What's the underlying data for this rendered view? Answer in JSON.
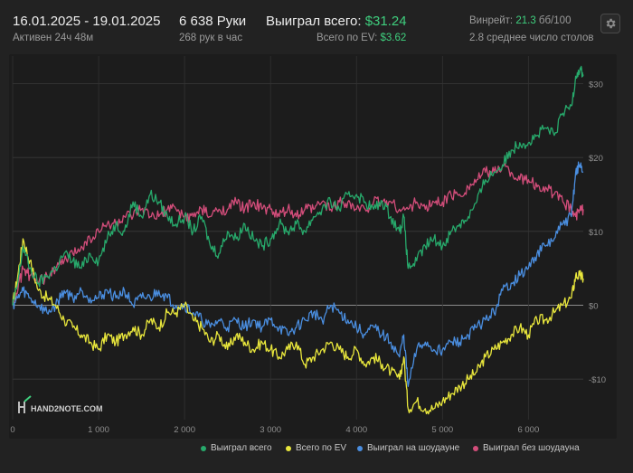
{
  "header": {
    "date_range": "16.01.2025 - 19.01.2025",
    "active": "Активен 24ч 48м",
    "hands": "6 638 Руки",
    "hands_per_hour": "268 рук в час",
    "won_label": "Выиграл всего:",
    "won_value": "$31.24",
    "ev_label": "Всего по EV:",
    "ev_value": "$3.62",
    "winrate_label": "Винрейт:",
    "winrate_value": "21.3",
    "winrate_unit": "бб/100",
    "avg_tables": "2.8 среднее число столов"
  },
  "watermark": "HAND2NOTE.COM",
  "colors": {
    "total": "#27a96b",
    "ev": "#e8e63c",
    "showdown": "#4a8ee0",
    "non_showdown": "#d24d7a"
  },
  "chart_data": {
    "type": "line",
    "x_range": [
      0,
      6638
    ],
    "ylim": [
      -15,
      33
    ],
    "x_ticks": [
      0,
      1000,
      2000,
      3000,
      4000,
      5000,
      6000
    ],
    "x_tick_labels": [
      "0",
      "1 000",
      "2 000",
      "3 000",
      "4 000",
      "5 000",
      "6 000"
    ],
    "y_ticks": [
      -10,
      0,
      10,
      20,
      30
    ],
    "y_tick_labels": [
      "-$10",
      "$0",
      "$10",
      "$20",
      "$30"
    ],
    "grid": true,
    "legend_position": "bottom-right",
    "series": [
      {
        "name": "Выиграл всего",
        "key": "total",
        "points": [
          [
            0,
            0
          ],
          [
            60,
            3
          ],
          [
            120,
            8
          ],
          [
            200,
            5
          ],
          [
            300,
            3
          ],
          [
            400,
            4
          ],
          [
            500,
            5
          ],
          [
            600,
            7
          ],
          [
            700,
            6
          ],
          [
            800,
            5
          ],
          [
            900,
            7
          ],
          [
            1000,
            6
          ],
          [
            1100,
            9
          ],
          [
            1200,
            11
          ],
          [
            1300,
            10
          ],
          [
            1400,
            14
          ],
          [
            1500,
            12
          ],
          [
            1600,
            15
          ],
          [
            1700,
            14
          ],
          [
            1800,
            12
          ],
          [
            1900,
            11
          ],
          [
            2000,
            12
          ],
          [
            2100,
            10
          ],
          [
            2200,
            12
          ],
          [
            2300,
            8
          ],
          [
            2400,
            7
          ],
          [
            2500,
            10
          ],
          [
            2600,
            9
          ],
          [
            2700,
            11
          ],
          [
            2800,
            9
          ],
          [
            2900,
            8
          ],
          [
            3000,
            9
          ],
          [
            3100,
            11
          ],
          [
            3200,
            10
          ],
          [
            3300,
            11
          ],
          [
            3400,
            10
          ],
          [
            3500,
            12
          ],
          [
            3600,
            13
          ],
          [
            3700,
            14
          ],
          [
            3800,
            13
          ],
          [
            3900,
            15
          ],
          [
            4000,
            15
          ],
          [
            4100,
            14
          ],
          [
            4200,
            13
          ],
          [
            4300,
            14
          ],
          [
            4400,
            12
          ],
          [
            4500,
            10
          ],
          [
            4550,
            12
          ],
          [
            4600,
            5
          ],
          [
            4700,
            6
          ],
          [
            4800,
            8
          ],
          [
            4900,
            9
          ],
          [
            5000,
            8
          ],
          [
            5100,
            10
          ],
          [
            5200,
            11
          ],
          [
            5300,
            12
          ],
          [
            5400,
            14
          ],
          [
            5500,
            17
          ],
          [
            5600,
            18
          ],
          [
            5700,
            19
          ],
          [
            5800,
            21
          ],
          [
            5900,
            22
          ],
          [
            6000,
            22
          ],
          [
            6100,
            23
          ],
          [
            6200,
            24
          ],
          [
            6300,
            23
          ],
          [
            6400,
            26
          ],
          [
            6500,
            27
          ],
          [
            6550,
            31
          ],
          [
            6600,
            32
          ],
          [
            6638,
            31.24
          ]
        ]
      },
      {
        "name": "Всего по EV",
        "key": "ev",
        "points": [
          [
            0,
            0
          ],
          [
            60,
            4
          ],
          [
            120,
            9
          ],
          [
            200,
            6
          ],
          [
            300,
            2
          ],
          [
            400,
            1
          ],
          [
            500,
            0
          ],
          [
            600,
            -2
          ],
          [
            700,
            -3
          ],
          [
            800,
            -4
          ],
          [
            900,
            -5
          ],
          [
            1000,
            -6
          ],
          [
            1100,
            -4
          ],
          [
            1200,
            -5
          ],
          [
            1300,
            -4
          ],
          [
            1400,
            -3
          ],
          [
            1500,
            -4
          ],
          [
            1600,
            -2
          ],
          [
            1700,
            -3
          ],
          [
            1800,
            -1
          ],
          [
            1900,
            -1
          ],
          [
            2000,
            0
          ],
          [
            2100,
            -2
          ],
          [
            2200,
            -3
          ],
          [
            2300,
            -5
          ],
          [
            2400,
            -4
          ],
          [
            2500,
            -6
          ],
          [
            2600,
            -4
          ],
          [
            2700,
            -5
          ],
          [
            2800,
            -6
          ],
          [
            2900,
            -5
          ],
          [
            3000,
            -6
          ],
          [
            3100,
            -7
          ],
          [
            3200,
            -6
          ],
          [
            3300,
            -5
          ],
          [
            3400,
            -8
          ],
          [
            3500,
            -7
          ],
          [
            3600,
            -6
          ],
          [
            3700,
            -5
          ],
          [
            3800,
            -6
          ],
          [
            3900,
            -7
          ],
          [
            4000,
            -6
          ],
          [
            4100,
            -8
          ],
          [
            4200,
            -7
          ],
          [
            4300,
            -8
          ],
          [
            4400,
            -9
          ],
          [
            4500,
            -10
          ],
          [
            4550,
            -7
          ],
          [
            4600,
            -14
          ],
          [
            4700,
            -13
          ],
          [
            4800,
            -14
          ],
          [
            4900,
            -14
          ],
          [
            5000,
            -13
          ],
          [
            5100,
            -12
          ],
          [
            5200,
            -11
          ],
          [
            5300,
            -10
          ],
          [
            5400,
            -9
          ],
          [
            5500,
            -7
          ],
          [
            5600,
            -6
          ],
          [
            5700,
            -5
          ],
          [
            5800,
            -4
          ],
          [
            5900,
            -3
          ],
          [
            6000,
            -4
          ],
          [
            6100,
            -2
          ],
          [
            6200,
            -2
          ],
          [
            6300,
            -1
          ],
          [
            6400,
            0
          ],
          [
            6500,
            1
          ],
          [
            6550,
            4
          ],
          [
            6600,
            4
          ],
          [
            6638,
            3.62
          ]
        ]
      },
      {
        "name": "Выиграл на шоудауне",
        "key": "showdown",
        "points": [
          [
            0,
            0
          ],
          [
            60,
            1
          ],
          [
            120,
            2
          ],
          [
            200,
            1
          ],
          [
            300,
            0
          ],
          [
            400,
            -1
          ],
          [
            500,
            0
          ],
          [
            600,
            2
          ],
          [
            700,
            1
          ],
          [
            800,
            2
          ],
          [
            900,
            1
          ],
          [
            1000,
            1
          ],
          [
            1100,
            2
          ],
          [
            1200,
            1
          ],
          [
            1300,
            2
          ],
          [
            1400,
            0
          ],
          [
            1500,
            1
          ],
          [
            1600,
            1
          ],
          [
            1700,
            2
          ],
          [
            1800,
            1
          ],
          [
            1900,
            0
          ],
          [
            2000,
            0
          ],
          [
            2100,
            -1
          ],
          [
            2200,
            -2
          ],
          [
            2300,
            -3
          ],
          [
            2400,
            -2
          ],
          [
            2500,
            -3
          ],
          [
            2600,
            -2
          ],
          [
            2700,
            -3
          ],
          [
            2800,
            -2
          ],
          [
            2900,
            -3
          ],
          [
            3000,
            -2
          ],
          [
            3100,
            -3
          ],
          [
            3200,
            -4
          ],
          [
            3300,
            -3
          ],
          [
            3400,
            -2
          ],
          [
            3500,
            -1
          ],
          [
            3600,
            -2
          ],
          [
            3700,
            0
          ],
          [
            3800,
            -1
          ],
          [
            3900,
            -2
          ],
          [
            4000,
            -3
          ],
          [
            4100,
            -4
          ],
          [
            4200,
            -3
          ],
          [
            4300,
            -4
          ],
          [
            4400,
            -5
          ],
          [
            4500,
            -7
          ],
          [
            4550,
            -4
          ],
          [
            4600,
            -11
          ],
          [
            4700,
            -6
          ],
          [
            4800,
            -5
          ],
          [
            4900,
            -6
          ],
          [
            5000,
            -6
          ],
          [
            5100,
            -5
          ],
          [
            5200,
            -5
          ],
          [
            5300,
            -4
          ],
          [
            5400,
            -3
          ],
          [
            5500,
            -2
          ],
          [
            5600,
            -1
          ],
          [
            5700,
            2
          ],
          [
            5800,
            3
          ],
          [
            5900,
            4
          ],
          [
            6000,
            5
          ],
          [
            6100,
            7
          ],
          [
            6200,
            8
          ],
          [
            6300,
            9
          ],
          [
            6400,
            11
          ],
          [
            6500,
            12
          ],
          [
            6550,
            18
          ],
          [
            6600,
            19
          ],
          [
            6638,
            18
          ]
        ]
      },
      {
        "name": "Выиграл без шоудауна",
        "key": "non_showdown",
        "points": [
          [
            0,
            0
          ],
          [
            60,
            2
          ],
          [
            120,
            5
          ],
          [
            200,
            4
          ],
          [
            300,
            3
          ],
          [
            400,
            4
          ],
          [
            500,
            5
          ],
          [
            600,
            6
          ],
          [
            700,
            7
          ],
          [
            800,
            8
          ],
          [
            900,
            9
          ],
          [
            1000,
            10
          ],
          [
            1100,
            11
          ],
          [
            1200,
            11
          ],
          [
            1300,
            12
          ],
          [
            1400,
            12
          ],
          [
            1500,
            13
          ],
          [
            1600,
            12
          ],
          [
            1700,
            12
          ],
          [
            1800,
            13
          ],
          [
            1900,
            13
          ],
          [
            2000,
            12
          ],
          [
            2100,
            12
          ],
          [
            2200,
            13
          ],
          [
            2300,
            12
          ],
          [
            2400,
            13
          ],
          [
            2500,
            13
          ],
          [
            2600,
            14
          ],
          [
            2700,
            13
          ],
          [
            2800,
            14
          ],
          [
            2900,
            13
          ],
          [
            3000,
            13
          ],
          [
            3100,
            12
          ],
          [
            3200,
            13
          ],
          [
            3300,
            12
          ],
          [
            3400,
            13
          ],
          [
            3500,
            13
          ],
          [
            3600,
            14
          ],
          [
            3700,
            13
          ],
          [
            3800,
            14
          ],
          [
            3900,
            14
          ],
          [
            4000,
            13
          ],
          [
            4100,
            13
          ],
          [
            4200,
            14
          ],
          [
            4300,
            14
          ],
          [
            4400,
            14
          ],
          [
            4500,
            13
          ],
          [
            4600,
            13
          ],
          [
            4700,
            14
          ],
          [
            4800,
            13
          ],
          [
            4900,
            14
          ],
          [
            5000,
            14
          ],
          [
            5100,
            15
          ],
          [
            5200,
            15
          ],
          [
            5300,
            16
          ],
          [
            5400,
            17
          ],
          [
            5500,
            18
          ],
          [
            5600,
            18
          ],
          [
            5700,
            19
          ],
          [
            5800,
            18
          ],
          [
            5900,
            17
          ],
          [
            6000,
            17
          ],
          [
            6100,
            16
          ],
          [
            6200,
            16
          ],
          [
            6300,
            15
          ],
          [
            6400,
            14
          ],
          [
            6500,
            13
          ],
          [
            6550,
            12
          ],
          [
            6600,
            13
          ],
          [
            6638,
            13
          ]
        ]
      }
    ]
  }
}
